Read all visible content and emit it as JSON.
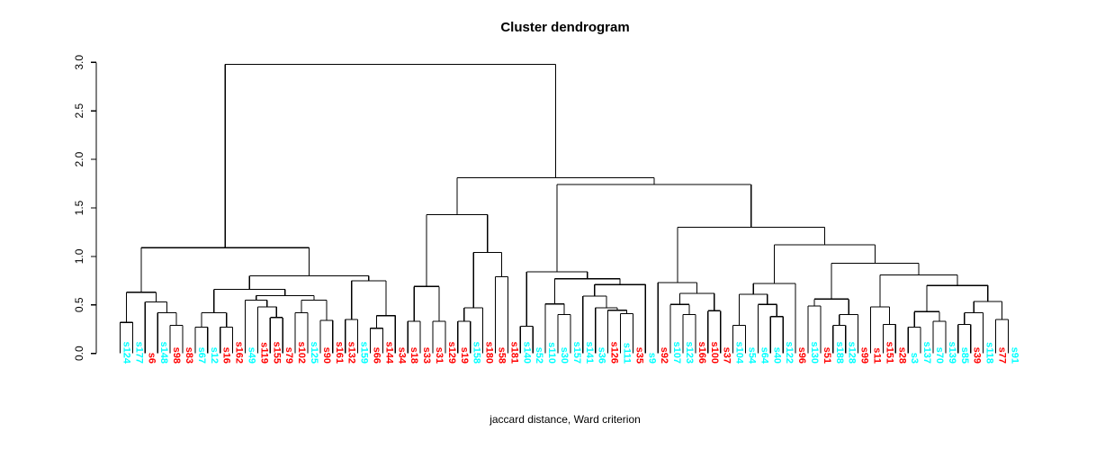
{
  "title": "Cluster dendrogram",
  "caption": "jaccard distance, Ward criterion",
  "chart_data": {
    "type": "dendrogram",
    "title": "Cluster dendrogram",
    "xlabel": "jaccard distance, Ward criterion",
    "ylabel": "",
    "ylim": [
      0.0,
      3.0
    ],
    "yticks": [
      "0.0",
      "0.5",
      "1.0",
      "1.5",
      "2.0",
      "2.5",
      "3.0"
    ],
    "grid": false,
    "line_color": "#000000",
    "palette": {
      "cyan": "#00ffff",
      "red": "#ff0000"
    },
    "leaves": [
      {
        "label": "s124",
        "color": "cyan"
      },
      {
        "label": "s177",
        "color": "cyan"
      },
      {
        "label": "s6",
        "color": "red"
      },
      {
        "label": "s148",
        "color": "cyan"
      },
      {
        "label": "s98",
        "color": "red"
      },
      {
        "label": "s83",
        "color": "red"
      },
      {
        "label": "s67",
        "color": "cyan"
      },
      {
        "label": "s12",
        "color": "cyan"
      },
      {
        "label": "s16",
        "color": "red"
      },
      {
        "label": "s162",
        "color": "red"
      },
      {
        "label": "s49",
        "color": "cyan"
      },
      {
        "label": "s119",
        "color": "red"
      },
      {
        "label": "s155",
        "color": "red"
      },
      {
        "label": "s79",
        "color": "red"
      },
      {
        "label": "s102",
        "color": "red"
      },
      {
        "label": "s125",
        "color": "cyan"
      },
      {
        "label": "s90",
        "color": "red"
      },
      {
        "label": "s161",
        "color": "red"
      },
      {
        "label": "s132",
        "color": "red"
      },
      {
        "label": "s159",
        "color": "cyan"
      },
      {
        "label": "s66",
        "color": "red"
      },
      {
        "label": "s144",
        "color": "red"
      },
      {
        "label": "s34",
        "color": "red"
      },
      {
        "label": "s18",
        "color": "red"
      },
      {
        "label": "s33",
        "color": "red"
      },
      {
        "label": "s31",
        "color": "red"
      },
      {
        "label": "s129",
        "color": "red"
      },
      {
        "label": "s19",
        "color": "red"
      },
      {
        "label": "s158",
        "color": "cyan"
      },
      {
        "label": "s180",
        "color": "red"
      },
      {
        "label": "s58",
        "color": "red"
      },
      {
        "label": "s181",
        "color": "red"
      },
      {
        "label": "s140",
        "color": "cyan"
      },
      {
        "label": "s52",
        "color": "cyan"
      },
      {
        "label": "s110",
        "color": "cyan"
      },
      {
        "label": "s30",
        "color": "cyan"
      },
      {
        "label": "s157",
        "color": "cyan"
      },
      {
        "label": "s141",
        "color": "cyan"
      },
      {
        "label": "s36",
        "color": "cyan"
      },
      {
        "label": "s126",
        "color": "red"
      },
      {
        "label": "s111",
        "color": "cyan"
      },
      {
        "label": "s35",
        "color": "red"
      },
      {
        "label": "s9",
        "color": "cyan"
      },
      {
        "label": "s92",
        "color": "red"
      },
      {
        "label": "s107",
        "color": "cyan"
      },
      {
        "label": "s123",
        "color": "cyan"
      },
      {
        "label": "s166",
        "color": "red"
      },
      {
        "label": "s100",
        "color": "red"
      },
      {
        "label": "s37",
        "color": "red"
      },
      {
        "label": "s104",
        "color": "cyan"
      },
      {
        "label": "s54",
        "color": "cyan"
      },
      {
        "label": "s64",
        "color": "cyan"
      },
      {
        "label": "s40",
        "color": "cyan"
      },
      {
        "label": "s122",
        "color": "cyan"
      },
      {
        "label": "s96",
        "color": "red"
      },
      {
        "label": "s130",
        "color": "cyan"
      },
      {
        "label": "s51",
        "color": "red"
      },
      {
        "label": "s188",
        "color": "cyan"
      },
      {
        "label": "s128",
        "color": "cyan"
      },
      {
        "label": "s99",
        "color": "red"
      },
      {
        "label": "s11",
        "color": "red"
      },
      {
        "label": "s151",
        "color": "red"
      },
      {
        "label": "s28",
        "color": "red"
      },
      {
        "label": "s3",
        "color": "cyan"
      },
      {
        "label": "s137",
        "color": "cyan"
      },
      {
        "label": "s70",
        "color": "cyan"
      },
      {
        "label": "s139",
        "color": "cyan"
      },
      {
        "label": "s85",
        "color": "cyan"
      },
      {
        "label": "s39",
        "color": "red"
      },
      {
        "label": "s118",
        "color": "cyan"
      },
      {
        "label": "s77",
        "color": "red"
      },
      {
        "label": "s91",
        "color": "cyan"
      }
    ],
    "tree": {
      "h": 2.98,
      "c": [
        {
          "h": 1.09,
          "c": [
            {
              "h": 0.63,
              "c": [
                {
                  "h": 0.32,
                  "c": [
                    0,
                    1
                  ]
                },
                {
                  "h": 0.53,
                  "c": [
                    2,
                    {
                      "h": 0.42,
                      "c": [
                        3,
                        {
                          "h": 0.29,
                          "c": [
                            4,
                            5
                          ]
                        }
                      ]
                    }
                  ]
                }
              ]
            },
            {
              "h": 0.8,
              "c": [
                {
                  "h": 0.66,
                  "c": [
                    {
                      "h": 0.42,
                      "c": [
                        {
                          "h": 0.27,
                          "c": [
                            6,
                            7
                          ]
                        },
                        {
                          "h": 0.27,
                          "c": [
                            8,
                            9
                          ]
                        }
                      ]
                    },
                    {
                      "h": 0.595,
                      "c": [
                        {
                          "h": 0.55,
                          "c": [
                            10,
                            {
                              "h": 0.48,
                              "c": [
                                11,
                                {
                                  "h": 0.37,
                                  "c": [
                                    12,
                                    13
                                  ]
                                }
                              ]
                            }
                          ]
                        },
                        {
                          "h": 0.55,
                          "c": [
                            {
                              "h": 0.42,
                              "c": [
                                14,
                                15
                              ]
                            },
                            {
                              "h": 0.34,
                              "c": [
                                16,
                                17
                              ]
                            }
                          ]
                        }
                      ]
                    }
                  ]
                },
                {
                  "h": 0.75,
                  "c": [
                    {
                      "h": 0.35,
                      "c": [
                        18,
                        19
                      ]
                    },
                    {
                      "h": 0.39,
                      "c": [
                        {
                          "h": 0.26,
                          "c": [
                            20,
                            21
                          ]
                        },
                        22
                      ]
                    }
                  ]
                }
              ]
            }
          ]
        },
        {
          "h": 1.81,
          "c": [
            {
              "h": 1.43,
              "c": [
                {
                  "h": 0.69,
                  "c": [
                    {
                      "h": 0.33,
                      "c": [
                        23,
                        24
                      ]
                    },
                    {
                      "h": 0.33,
                      "c": [
                        25,
                        26
                      ]
                    }
                  ]
                },
                {
                  "h": 1.04,
                  "c": [
                    {
                      "h": 0.47,
                      "c": [
                        {
                          "h": 0.33,
                          "c": [
                            27,
                            28
                          ]
                        },
                        29
                      ]
                    },
                    {
                      "h": 0.79,
                      "c": [
                        30,
                        31
                      ]
                    }
                  ]
                }
              ]
            },
            {
              "h": 1.74,
              "c": [
                {
                  "h": 0.84,
                  "c": [
                    {
                      "h": 0.28,
                      "c": [
                        32,
                        33
                      ]
                    },
                    {
                      "h": 0.77,
                      "c": [
                        {
                          "h": 0.51,
                          "c": [
                            34,
                            {
                              "h": 0.4,
                              "c": [
                                35,
                                36
                              ]
                            }
                          ]
                        },
                        {
                          "h": 0.71,
                          "c": [
                            {
                              "h": 0.59,
                              "c": [
                                37,
                                {
                                  "h": 0.47,
                                  "c": [
                                    38,
                                    {
                                      "h": 0.445,
                                      "c": [
                                        39,
                                        {
                                          "h": 0.41,
                                          "c": [
                                            40,
                                            41
                                          ]
                                        }
                                      ]
                                    }
                                  ]
                                }
                              ]
                            },
                            42
                          ]
                        }
                      ]
                    }
                  ]
                },
                {
                  "h": 1.3,
                  "c": [
                    {
                      "h": 0.73,
                      "c": [
                        43,
                        {
                          "h": 0.62,
                          "c": [
                            {
                              "h": 0.505,
                              "c": [
                                44,
                                {
                                  "h": 0.4,
                                  "c": [
                                    45,
                                    46
                                  ]
                                }
                              ]
                            },
                            {
                              "h": 0.44,
                              "c": [
                                47,
                                48
                              ]
                            }
                          ]
                        }
                      ]
                    },
                    {
                      "h": 1.12,
                      "c": [
                        {
                          "h": 0.72,
                          "c": [
                            {
                              "h": 0.61,
                              "c": [
                                {
                                  "h": 0.29,
                                  "c": [
                                    49,
                                    50
                                  ]
                                },
                                {
                                  "h": 0.505,
                                  "c": [
                                    51,
                                    {
                                      "h": 0.38,
                                      "c": [
                                        52,
                                        53
                                      ]
                                    }
                                  ]
                                }
                              ]
                            },
                            54
                          ]
                        },
                        {
                          "h": 0.93,
                          "c": [
                            {
                              "h": 0.56,
                              "c": [
                                {
                                  "h": 0.49,
                                  "c": [
                                    55,
                                    56
                                  ]
                                },
                                {
                                  "h": 0.4,
                                  "c": [
                                    {
                                      "h": 0.29,
                                      "c": [
                                        57,
                                        58
                                      ]
                                    },
                                    59
                                  ]
                                }
                              ]
                            },
                            {
                              "h": 0.81,
                              "c": [
                                {
                                  "h": 0.48,
                                  "c": [
                                    60,
                                    {
                                      "h": 0.3,
                                      "c": [
                                        61,
                                        62
                                      ]
                                    }
                                  ]
                                },
                                {
                                  "h": 0.7,
                                  "c": [
                                    {
                                      "h": 0.43,
                                      "c": [
                                        {
                                          "h": 0.27,
                                          "c": [
                                            63,
                                            64
                                          ]
                                        },
                                        {
                                          "h": 0.33,
                                          "c": [
                                            65,
                                            66
                                          ]
                                        }
                                      ]
                                    },
                                    {
                                      "h": 0.535,
                                      "c": [
                                        {
                                          "h": 0.42,
                                          "c": [
                                            {
                                              "h": 0.3,
                                              "c": [
                                                67,
                                                68
                                              ]
                                            },
                                            69
                                          ]
                                        },
                                        {
                                          "h": 0.35,
                                          "c": [
                                            70,
                                            71
                                          ]
                                        }
                                      ]
                                    }
                                  ]
                                }
                              ]
                            }
                          ]
                        }
                      ]
                    }
                  ]
                }
              ]
            }
          ]
        }
      ]
    }
  }
}
